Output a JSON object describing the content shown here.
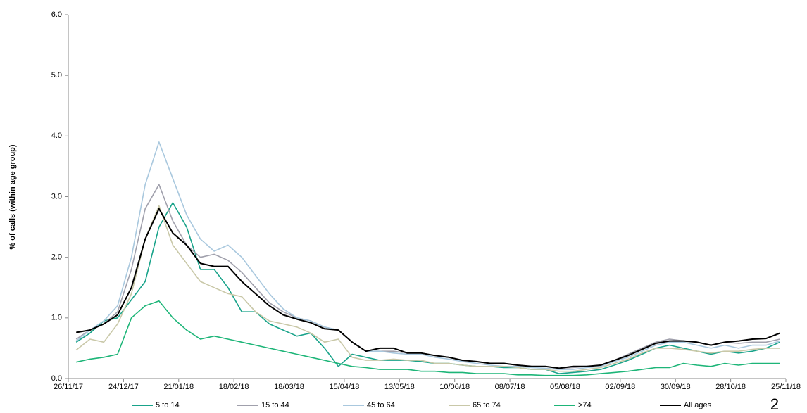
{
  "chart_data": {
    "type": "line",
    "y_label": "% of calls (within age group)",
    "x": [
      "30/11/17",
      "07/12/17",
      "14/12/17",
      "21/12/17",
      "28/12/17",
      "04/01/18",
      "11/01/18",
      "18/01/18",
      "25/01/18",
      "01/02/18",
      "08/02/18",
      "15/02/18",
      "22/02/18",
      "01/03/18",
      "08/03/18",
      "15/03/18",
      "22/03/18",
      "29/03/18",
      "05/04/18",
      "12/04/18",
      "19/04/18",
      "26/04/18",
      "03/05/18",
      "10/05/18",
      "17/05/18",
      "24/05/18",
      "31/05/18",
      "07/06/18",
      "14/06/18",
      "21/06/18",
      "28/06/18",
      "05/07/18",
      "12/07/18",
      "19/07/18",
      "26/07/18",
      "02/08/18",
      "09/08/18",
      "16/08/18",
      "23/08/18",
      "30/08/18",
      "06/09/18",
      "13/09/18",
      "20/09/18",
      "27/09/18",
      "04/10/18",
      "11/10/18",
      "18/10/18",
      "25/10/18",
      "01/11/18",
      "08/11/18",
      "15/11/18",
      "22/11/18"
    ],
    "series": [
      {
        "name": "5 to 14",
        "color": "#19a38a",
        "values": [
          0.6,
          0.75,
          0.95,
          1.0,
          1.3,
          1.6,
          2.5,
          2.9,
          2.5,
          1.8,
          1.8,
          1.5,
          1.1,
          1.1,
          0.9,
          0.8,
          0.7,
          0.75,
          0.5,
          0.2,
          0.4,
          0.35,
          0.3,
          0.3,
          0.3,
          0.28,
          0.25,
          0.25,
          0.22,
          0.2,
          0.2,
          0.18,
          0.18,
          0.15,
          0.15,
          0.08,
          0.1,
          0.12,
          0.15,
          0.22,
          0.3,
          0.4,
          0.5,
          0.55,
          0.5,
          0.45,
          0.4,
          0.45,
          0.42,
          0.45,
          0.5,
          0.6
        ]
      },
      {
        "name": "15 to 44",
        "color": "#a0a0ac",
        "values": [
          0.65,
          0.8,
          0.9,
          1.1,
          1.8,
          2.8,
          3.2,
          2.6,
          2.2,
          2.0,
          2.05,
          1.95,
          1.75,
          1.5,
          1.25,
          1.1,
          1.0,
          0.95,
          0.85,
          0.8,
          0.6,
          0.45,
          0.45,
          0.45,
          0.42,
          0.42,
          0.38,
          0.35,
          0.3,
          0.28,
          0.25,
          0.25,
          0.22,
          0.2,
          0.2,
          0.17,
          0.18,
          0.2,
          0.22,
          0.3,
          0.4,
          0.5,
          0.6,
          0.65,
          0.62,
          0.6,
          0.55,
          0.6,
          0.58,
          0.6,
          0.6,
          0.65
        ]
      },
      {
        "name": "45 to 64",
        "color": "#a9c8de",
        "values": [
          0.62,
          0.8,
          0.95,
          1.2,
          2.0,
          3.2,
          3.9,
          3.3,
          2.7,
          2.3,
          2.1,
          2.2,
          2.0,
          1.7,
          1.4,
          1.15,
          1.0,
          0.95,
          0.85,
          0.8,
          0.6,
          0.45,
          0.45,
          0.42,
          0.4,
          0.4,
          0.35,
          0.32,
          0.28,
          0.25,
          0.22,
          0.2,
          0.2,
          0.18,
          0.17,
          0.15,
          0.15,
          0.18,
          0.2,
          0.28,
          0.35,
          0.45,
          0.55,
          0.6,
          0.6,
          0.55,
          0.5,
          0.55,
          0.5,
          0.55,
          0.55,
          0.62
        ]
      },
      {
        "name": "65 to 74",
        "color": "#c9c8a8",
        "values": [
          0.47,
          0.65,
          0.6,
          0.9,
          1.4,
          2.3,
          2.85,
          2.2,
          1.9,
          1.6,
          1.5,
          1.4,
          1.35,
          1.1,
          0.95,
          0.9,
          0.85,
          0.75,
          0.6,
          0.65,
          0.35,
          0.3,
          0.3,
          0.32,
          0.3,
          0.3,
          0.25,
          0.25,
          0.22,
          0.2,
          0.2,
          0.2,
          0.18,
          0.15,
          0.15,
          0.12,
          0.12,
          0.15,
          0.18,
          0.25,
          0.32,
          0.42,
          0.5,
          0.5,
          0.48,
          0.45,
          0.42,
          0.45,
          0.45,
          0.48,
          0.5,
          0.5
        ]
      },
      {
        "name": ">74",
        "color": "#1db578",
        "values": [
          0.27,
          0.32,
          0.35,
          0.4,
          1.0,
          1.2,
          1.28,
          1.0,
          0.8,
          0.65,
          0.7,
          0.65,
          0.6,
          0.55,
          0.5,
          0.45,
          0.4,
          0.35,
          0.3,
          0.25,
          0.2,
          0.18,
          0.15,
          0.15,
          0.15,
          0.12,
          0.12,
          0.1,
          0.1,
          0.08,
          0.08,
          0.08,
          0.06,
          0.06,
          0.05,
          0.05,
          0.05,
          0.06,
          0.08,
          0.1,
          0.12,
          0.15,
          0.18,
          0.18,
          0.25,
          0.22,
          0.2,
          0.25,
          0.22,
          0.25,
          0.25,
          0.25
        ]
      },
      {
        "name": "All ages",
        "color": "#000000",
        "values": [
          0.76,
          0.8,
          0.9,
          1.05,
          1.5,
          2.3,
          2.8,
          2.4,
          2.2,
          1.9,
          1.85,
          1.85,
          1.6,
          1.4,
          1.2,
          1.05,
          0.98,
          0.92,
          0.82,
          0.8,
          0.6,
          0.45,
          0.5,
          0.5,
          0.42,
          0.42,
          0.38,
          0.35,
          0.3,
          0.28,
          0.25,
          0.25,
          0.22,
          0.2,
          0.2,
          0.17,
          0.2,
          0.2,
          0.22,
          0.3,
          0.38,
          0.48,
          0.58,
          0.62,
          0.62,
          0.6,
          0.55,
          0.6,
          0.62,
          0.65,
          0.66,
          0.75
        ]
      }
    ],
    "xlim": [
      "26/11/17",
      "25/11/18"
    ],
    "xticks": [
      "26/11/17",
      "24/12/17",
      "21/01/18",
      "18/02/18",
      "18/03/18",
      "15/04/18",
      "13/05/18",
      "10/06/18",
      "08/07/18",
      "05/08/18",
      "02/09/18",
      "30/09/18",
      "28/10/18",
      "25/11/18"
    ],
    "ylim": [
      0,
      6
    ],
    "yticks": [
      {
        "value": 0,
        "label": "0.0"
      },
      {
        "value": 1,
        "label": "1.0"
      },
      {
        "value": 2,
        "label": "2.0"
      },
      {
        "value": 3,
        "label": "3.0"
      },
      {
        "value": 4,
        "label": "4.0"
      },
      {
        "value": 5,
        "label": "5.0"
      },
      {
        "value": 6,
        "label": "6.0"
      }
    ],
    "legend": "bottom"
  },
  "page_number": "2"
}
